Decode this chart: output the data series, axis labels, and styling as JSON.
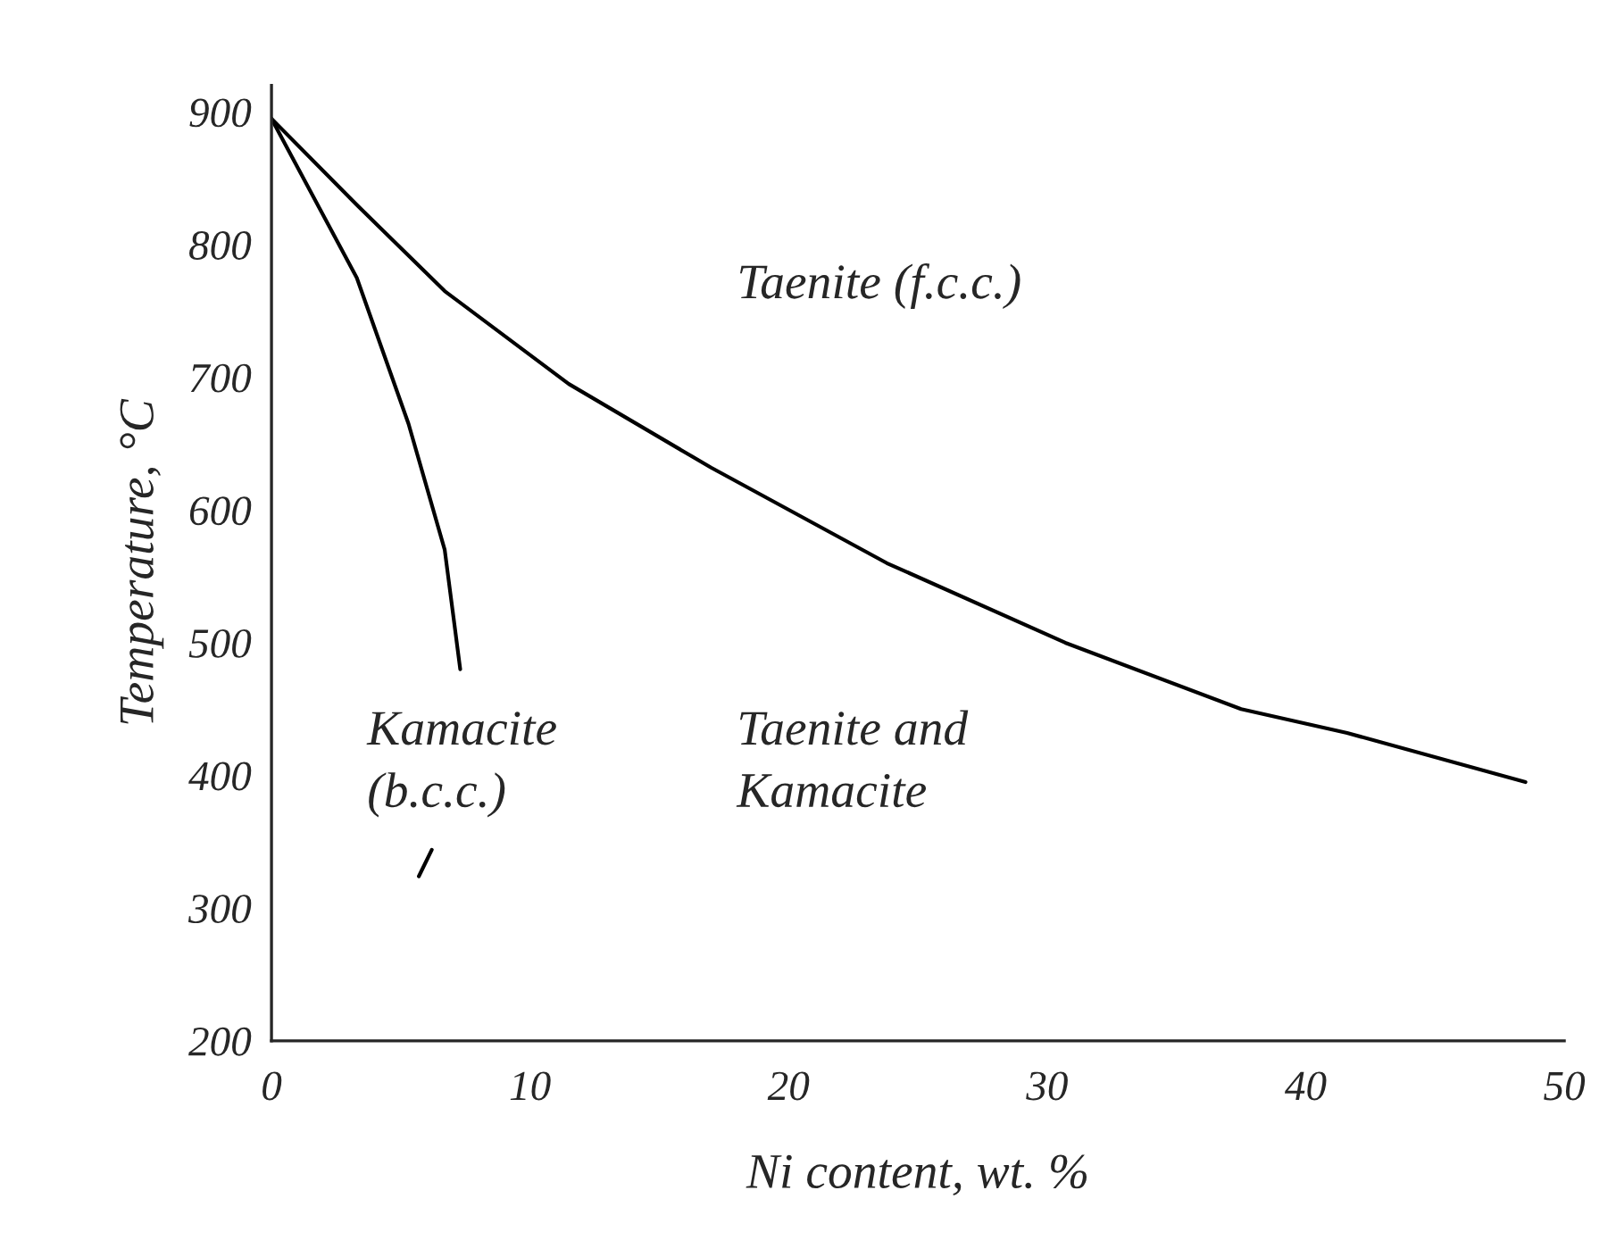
{
  "chart_data": {
    "type": "line",
    "xlabel": "Ni content, wt. %",
    "ylabel": "Temperature, °C",
    "xlim": [
      0,
      50
    ],
    "ylim": [
      200,
      920
    ],
    "xticks": [
      0,
      10,
      20,
      30,
      40,
      50
    ],
    "yticks": [
      200,
      300,
      400,
      500,
      600,
      700,
      800,
      900
    ],
    "grid": false,
    "legend": false,
    "marker": "none",
    "line_style": "solid",
    "series": [
      {
        "color": "#000000",
        "x": [
          0,
          3.3,
          6.7,
          11.5,
          17,
          23.8,
          30.7,
          37.5,
          41.6,
          48.5
        ],
        "values": [
          895,
          830,
          765,
          695,
          632,
          560,
          500,
          450,
          432,
          395
        ]
      },
      {
        "color": "#000000",
        "x": [
          0,
          3.3,
          5.3,
          6.7,
          7.3,
          7.0,
          6.2,
          5.7
        ],
        "values": [
          895,
          775,
          665,
          570,
          480,
          null,
          344,
          324
        ]
      }
    ],
    "annotations": [
      "Taenite (f.c.c.)",
      "Taenite and\nKamacite",
      "Kamacite\n(b.c.c.)"
    ]
  }
}
